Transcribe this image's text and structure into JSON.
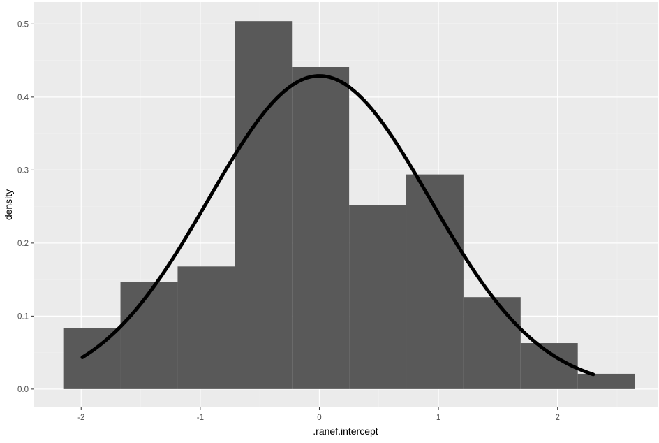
{
  "chart_data": {
    "type": "histogram",
    "xlabel": ".ranef.intercept",
    "ylabel": "density",
    "xlim": [
      -2.4,
      2.84
    ],
    "ylim": [
      -0.025,
      0.53
    ],
    "x_ticks": [
      -2,
      -1,
      0,
      1,
      2
    ],
    "y_ticks": [
      0.0,
      0.1,
      0.2,
      0.3,
      0.4,
      0.5
    ],
    "x_tick_labels": [
      "-2",
      "-1",
      "0",
      "1",
      "2"
    ],
    "y_tick_labels": [
      "0.0",
      "0.1",
      "0.2",
      "0.3",
      "0.4",
      "0.5"
    ],
    "grid": true,
    "bins": [
      {
        "x0": -2.15,
        "x1": -1.67,
        "density": 0.084
      },
      {
        "x0": -1.67,
        "x1": -1.19,
        "density": 0.147
      },
      {
        "x0": -1.19,
        "x1": -0.71,
        "density": 0.168
      },
      {
        "x0": -0.71,
        "x1": -0.23,
        "density": 0.504
      },
      {
        "x0": -0.23,
        "x1": 0.25,
        "density": 0.441
      },
      {
        "x0": 0.25,
        "x1": 0.73,
        "density": 0.252
      },
      {
        "x0": 0.73,
        "x1": 1.21,
        "density": 0.294
      },
      {
        "x0": 1.21,
        "x1": 1.69,
        "density": 0.126
      },
      {
        "x0": 1.69,
        "x1": 2.17,
        "density": 0.063
      },
      {
        "x0": 2.17,
        "x1": 2.65,
        "density": 0.021
      }
    ],
    "density_curve": {
      "type": "normal",
      "mean": 0.0,
      "sd": 0.93,
      "x_range": [
        -1.99,
        2.3
      ]
    },
    "colors": {
      "panel_background": "#ebebeb",
      "grid_major": "#ffffff",
      "grid_minor": "#f2f2f2",
      "bar_fill": "#595959",
      "curve": "#000000",
      "tick_text": "#4d4d4d",
      "tick_mark": "#333333"
    }
  }
}
